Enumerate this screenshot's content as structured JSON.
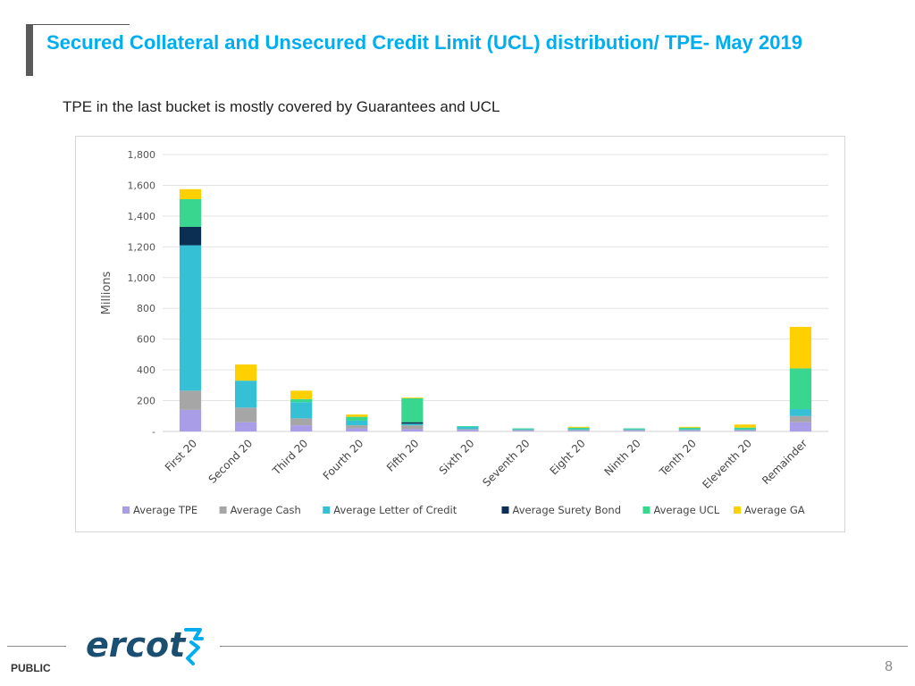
{
  "header": {
    "title": "Secured Collateral and Unsecured Credit Limit (UCL) distribution/ TPE- May 2019",
    "subtitle": "TPE in the last bucket is mostly covered by Guarantees and UCL"
  },
  "chart_data": {
    "type": "bar",
    "stacked": true,
    "ylabel": "Millions",
    "ylim": [
      0,
      1800
    ],
    "yticks": [
      0,
      200,
      400,
      600,
      800,
      1000,
      1200,
      1400,
      1600,
      1800
    ],
    "ytick_labels": [
      "-",
      "200",
      "400",
      "600",
      "800",
      "1,000",
      "1,200",
      "1,400",
      "1,600",
      "1,800"
    ],
    "grid": true,
    "legend_position": "bottom",
    "categories": [
      "First 20",
      "Second 20",
      "Third 20",
      "Fourth 20",
      "Fifth 20",
      "Sixth 20",
      "Seventh 20",
      "Eight 20",
      "Ninth 20",
      "Tenth 20",
      "Eleventh 20",
      "Remainder"
    ],
    "series": [
      {
        "name": "Average  TPE",
        "color": "#a99de8",
        "values": [
          140,
          60,
          40,
          20,
          15,
          10,
          5,
          5,
          5,
          5,
          5,
          60
        ]
      },
      {
        "name": "Average  Cash",
        "color": "#a6a6a6",
        "values": [
          125,
          95,
          45,
          20,
          25,
          5,
          5,
          5,
          5,
          5,
          5,
          40
        ]
      },
      {
        "name": "Average  Letter of Credit",
        "color": "#35c0d6",
        "values": [
          945,
          175,
          105,
          30,
          10,
          15,
          5,
          5,
          5,
          5,
          5,
          45
        ]
      },
      {
        "name": "Average Surety Bond",
        "color": "#0b2f52",
        "values": [
          120,
          0,
          0,
          0,
          10,
          0,
          0,
          0,
          0,
          0,
          0,
          0
        ]
      },
      {
        "name": "Average UCL",
        "color": "#38d68e",
        "values": [
          180,
          0,
          20,
          25,
          155,
          5,
          5,
          10,
          5,
          10,
          10,
          265
        ]
      },
      {
        "name": "Average GA",
        "color": "#ffd000",
        "values": [
          65,
          105,
          55,
          15,
          5,
          0,
          0,
          5,
          0,
          5,
          20,
          270
        ]
      }
    ]
  },
  "footer": {
    "label": "PUBLIC",
    "page_number": "8",
    "logo_text": "ercot",
    "logo_color": "#1b4f72",
    "logo_accent": "#00aeef"
  }
}
